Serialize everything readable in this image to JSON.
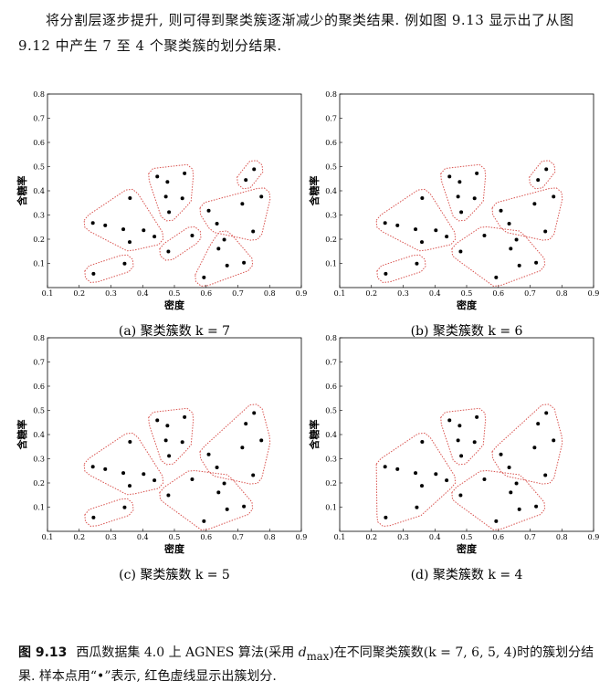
{
  "paragraph": "将分割层逐步提升, 则可得到聚类簇逐渐减少的聚类结果. 例如图 9.13 显示出了从图 9.12 中产生 7 至 4 个聚类簇的划分结果.",
  "chart_data": [
    {
      "type": "scatter",
      "xlabel": "密度",
      "ylabel": "含糖率",
      "caption": "(a) 聚类簇数 k = 7",
      "xlim": [
        0.1,
        0.9
      ],
      "ylim": [
        0,
        0.8
      ],
      "xticks": [
        0.1,
        0.2,
        0.3,
        0.4,
        0.5,
        0.6,
        0.7,
        0.8,
        0.9
      ],
      "yticks": [
        0.1,
        0.2,
        0.3,
        0.4,
        0.5,
        0.6,
        0.7,
        0.8
      ],
      "series": [
        {
          "color": "#000000",
          "outline_color": "#d9534f",
          "x": [
            0.243,
            0.282,
            0.339,
            0.36,
            0.359,
            0.437,
            0.403
          ],
          "y": [
            0.267,
            0.257,
            0.241,
            0.37,
            0.188,
            0.211,
            0.237
          ]
        },
        {
          "color": "#000000",
          "outline_color": "#d9534f",
          "x": [
            0.245,
            0.343
          ],
          "y": [
            0.057,
            0.099
          ]
        },
        {
          "color": "#000000",
          "outline_color": "#d9534f",
          "x": [
            0.446,
            0.478,
            0.473,
            0.483,
            0.525,
            0.532
          ],
          "y": [
            0.459,
            0.437,
            0.376,
            0.312,
            0.369,
            0.472
          ]
        },
        {
          "color": "#000000",
          "outline_color": "#d9534f",
          "x": [
            0.481,
            0.556
          ],
          "y": [
            0.149,
            0.215
          ]
        },
        {
          "color": "#000000",
          "outline_color": "#d9534f",
          "x": [
            0.725,
            0.751
          ],
          "y": [
            0.445,
            0.489
          ]
        },
        {
          "color": "#000000",
          "outline_color": "#d9534f",
          "x": [
            0.608,
            0.634,
            0.714,
            0.774,
            0.748
          ],
          "y": [
            0.318,
            0.264,
            0.346,
            0.376,
            0.232
          ]
        },
        {
          "color": "#000000",
          "outline_color": "#d9534f",
          "x": [
            0.593,
            0.666,
            0.719,
            0.639,
            0.657
          ],
          "y": [
            0.042,
            0.091,
            0.103,
            0.161,
            0.198
          ]
        }
      ]
    },
    {
      "type": "scatter",
      "xlabel": "密度",
      "ylabel": "含糖率",
      "caption": "(b) 聚类簇数 k = 6",
      "xlim": [
        0.1,
        0.9
      ],
      "ylim": [
        0,
        0.8
      ],
      "xticks": [
        0.1,
        0.2,
        0.3,
        0.4,
        0.5,
        0.6,
        0.7,
        0.8,
        0.9
      ],
      "yticks": [
        0.1,
        0.2,
        0.3,
        0.4,
        0.5,
        0.6,
        0.7,
        0.8
      ],
      "series": [
        {
          "color": "#000000",
          "outline_color": "#d9534f",
          "x": [
            0.243,
            0.282,
            0.339,
            0.36,
            0.359,
            0.437,
            0.403
          ],
          "y": [
            0.267,
            0.257,
            0.241,
            0.37,
            0.188,
            0.211,
            0.237
          ]
        },
        {
          "color": "#000000",
          "outline_color": "#d9534f",
          "x": [
            0.245,
            0.343
          ],
          "y": [
            0.057,
            0.099
          ]
        },
        {
          "color": "#000000",
          "outline_color": "#d9534f",
          "x": [
            0.446,
            0.478,
            0.473,
            0.483,
            0.525,
            0.532
          ],
          "y": [
            0.459,
            0.437,
            0.376,
            0.312,
            0.369,
            0.472
          ]
        },
        {
          "color": "#000000",
          "outline_color": "#d9534f",
          "x": [
            0.481,
            0.556,
            0.593,
            0.666,
            0.719,
            0.639,
            0.657
          ],
          "y": [
            0.149,
            0.215,
            0.042,
            0.091,
            0.103,
            0.161,
            0.198
          ]
        },
        {
          "color": "#000000",
          "outline_color": "#d9534f",
          "x": [
            0.725,
            0.751
          ],
          "y": [
            0.445,
            0.489
          ]
        },
        {
          "color": "#000000",
          "outline_color": "#d9534f",
          "x": [
            0.608,
            0.634,
            0.714,
            0.774,
            0.748
          ],
          "y": [
            0.318,
            0.264,
            0.346,
            0.376,
            0.232
          ]
        }
      ]
    },
    {
      "type": "scatter",
      "xlabel": "密度",
      "ylabel": "含糖率",
      "caption": "(c) 聚类簇数 k = 5",
      "xlim": [
        0.1,
        0.9
      ],
      "ylim": [
        0,
        0.8
      ],
      "xticks": [
        0.1,
        0.2,
        0.3,
        0.4,
        0.5,
        0.6,
        0.7,
        0.8,
        0.9
      ],
      "yticks": [
        0.1,
        0.2,
        0.3,
        0.4,
        0.5,
        0.6,
        0.7,
        0.8
      ],
      "series": [
        {
          "color": "#000000",
          "outline_color": "#d9534f",
          "x": [
            0.243,
            0.282,
            0.339,
            0.36,
            0.359,
            0.437,
            0.403
          ],
          "y": [
            0.267,
            0.257,
            0.241,
            0.37,
            0.188,
            0.211,
            0.237
          ]
        },
        {
          "color": "#000000",
          "outline_color": "#d9534f",
          "x": [
            0.245,
            0.343
          ],
          "y": [
            0.057,
            0.099
          ]
        },
        {
          "color": "#000000",
          "outline_color": "#d9534f",
          "x": [
            0.446,
            0.478,
            0.473,
            0.483,
            0.525,
            0.532
          ],
          "y": [
            0.459,
            0.437,
            0.376,
            0.312,
            0.369,
            0.472
          ]
        },
        {
          "color": "#000000",
          "outline_color": "#d9534f",
          "x": [
            0.481,
            0.556,
            0.593,
            0.666,
            0.719,
            0.639,
            0.657
          ],
          "y": [
            0.149,
            0.215,
            0.042,
            0.091,
            0.103,
            0.161,
            0.198
          ]
        },
        {
          "color": "#000000",
          "outline_color": "#d9534f",
          "x": [
            0.725,
            0.751,
            0.608,
            0.634,
            0.714,
            0.774,
            0.748
          ],
          "y": [
            0.445,
            0.489,
            0.318,
            0.264,
            0.346,
            0.376,
            0.232
          ]
        }
      ]
    },
    {
      "type": "scatter",
      "xlabel": "密度",
      "ylabel": "含糖率",
      "caption": "(d) 聚类簇数 k = 4",
      "xlim": [
        0.1,
        0.9
      ],
      "ylim": [
        0,
        0.8
      ],
      "xticks": [
        0.1,
        0.2,
        0.3,
        0.4,
        0.5,
        0.6,
        0.7,
        0.8,
        0.9
      ],
      "yticks": [
        0.1,
        0.2,
        0.3,
        0.4,
        0.5,
        0.6,
        0.7,
        0.8
      ],
      "series": [
        {
          "color": "#000000",
          "outline_color": "#d9534f",
          "x": [
            0.243,
            0.282,
            0.339,
            0.36,
            0.359,
            0.437,
            0.403,
            0.245,
            0.343
          ],
          "y": [
            0.267,
            0.257,
            0.241,
            0.37,
            0.188,
            0.211,
            0.237,
            0.057,
            0.099
          ]
        },
        {
          "color": "#000000",
          "outline_color": "#d9534f",
          "x": [
            0.446,
            0.478,
            0.473,
            0.483,
            0.525,
            0.532
          ],
          "y": [
            0.459,
            0.437,
            0.376,
            0.312,
            0.369,
            0.472
          ]
        },
        {
          "color": "#000000",
          "outline_color": "#d9534f",
          "x": [
            0.481,
            0.556,
            0.593,
            0.666,
            0.719,
            0.639,
            0.657
          ],
          "y": [
            0.149,
            0.215,
            0.042,
            0.091,
            0.103,
            0.161,
            0.198
          ]
        },
        {
          "color": "#000000",
          "outline_color": "#d9534f",
          "x": [
            0.725,
            0.751,
            0.608,
            0.634,
            0.714,
            0.774,
            0.748
          ],
          "y": [
            0.445,
            0.489,
            0.318,
            0.264,
            0.346,
            0.376,
            0.232
          ]
        }
      ]
    }
  ],
  "figure_caption": {
    "label": "图 9.13",
    "text_before": "西瓜数据集 4.0 上 AGNES 算法(采用 ",
    "symbol": "d",
    "subscript": "max",
    "text_after": ")在不同聚类簇数(k = 7, 6, 5, 4)时的簇划分结果. 样本点用“•”表示, 红色虚线显示出簇划分."
  }
}
